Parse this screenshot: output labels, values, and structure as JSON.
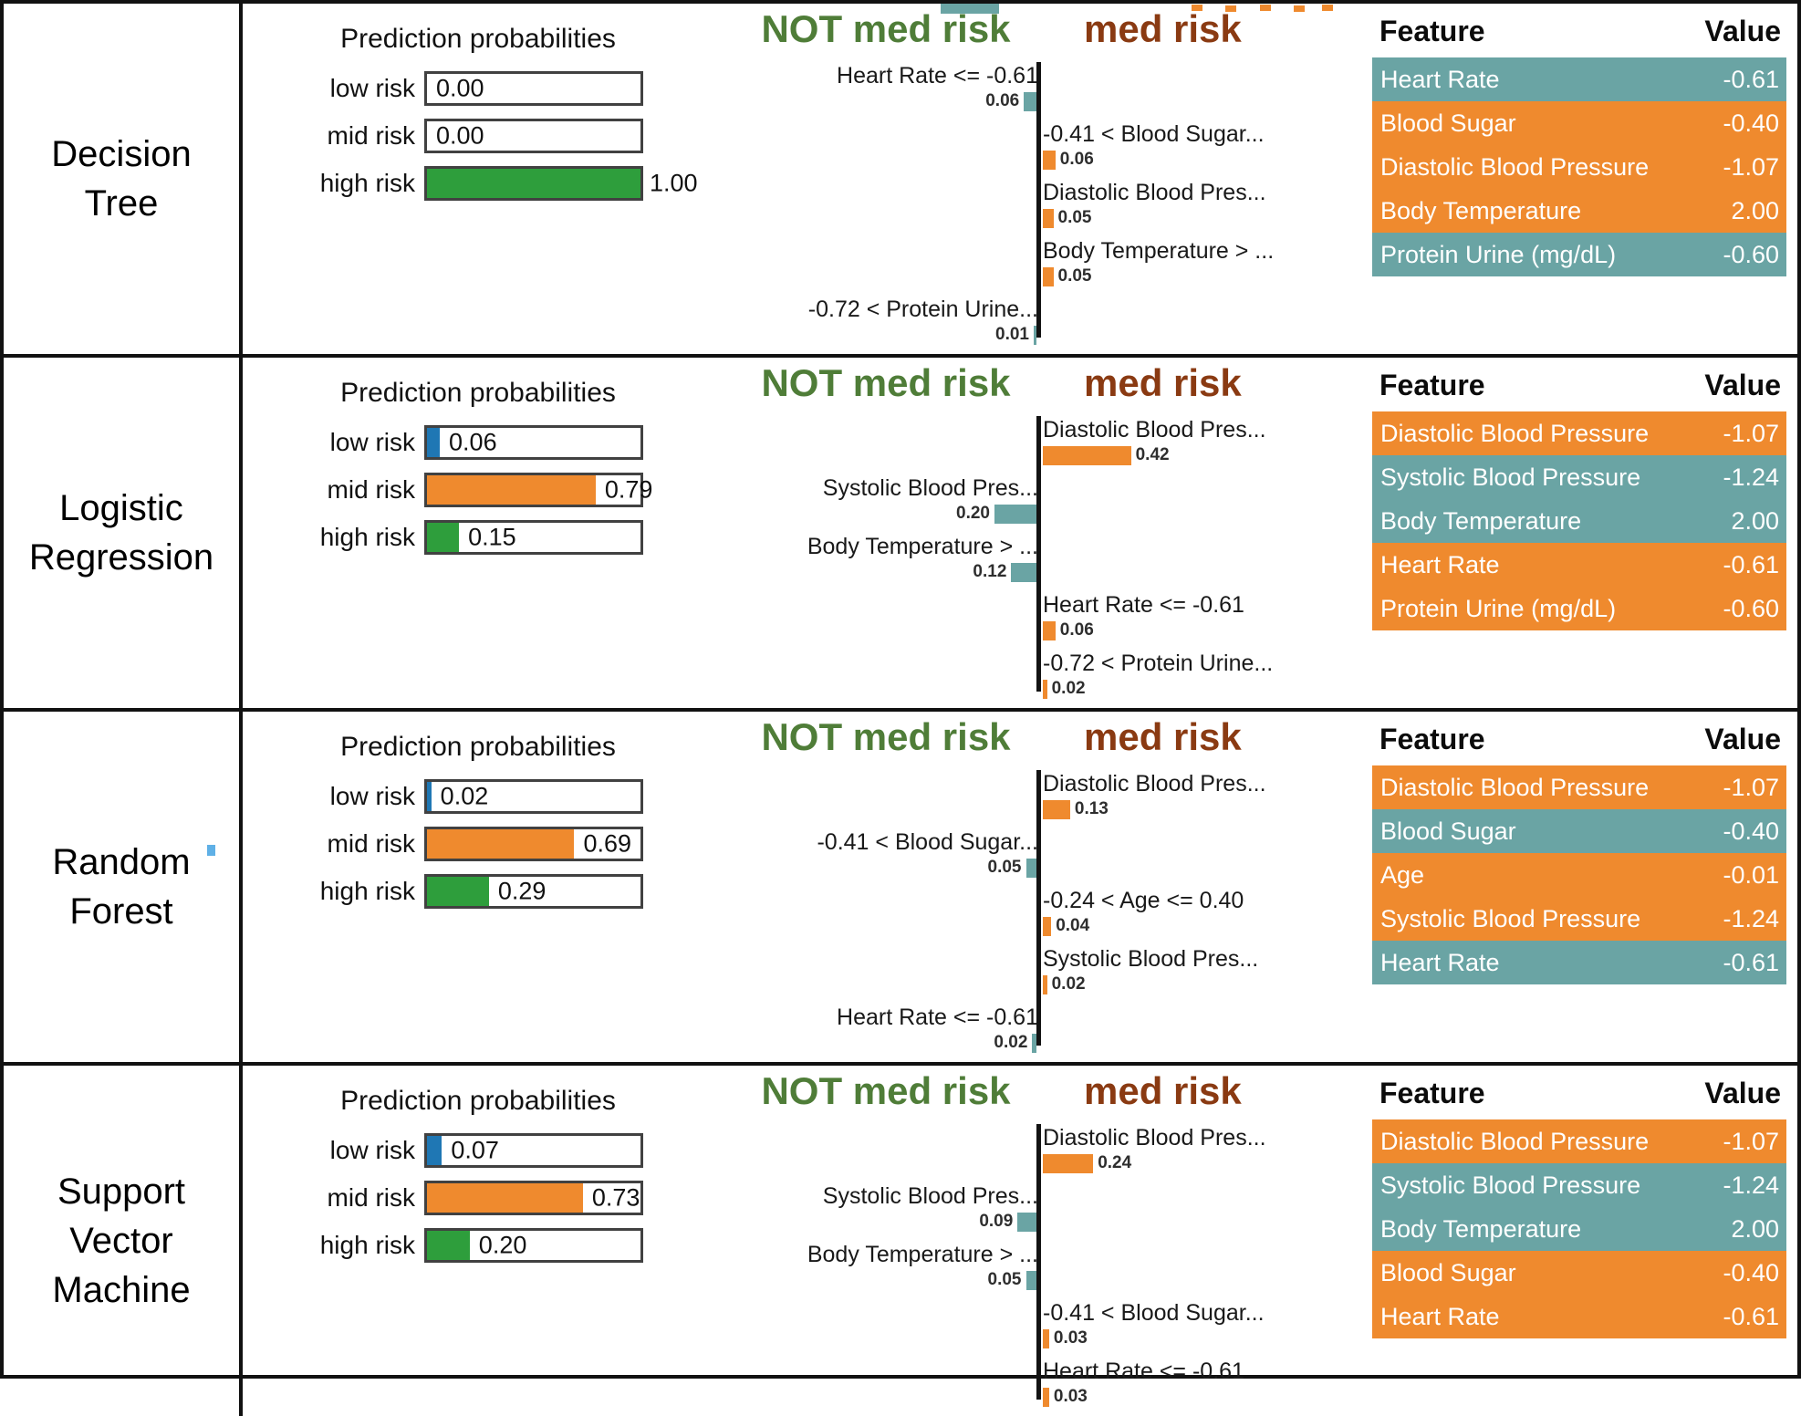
{
  "titles": {
    "probabilities": "Prediction probabilities",
    "not_med_risk": "NOT med risk",
    "med_risk": "med risk",
    "feature_col": "Feature",
    "value_col": "Value"
  },
  "colors": {
    "blue": "#1f77b4",
    "orange": "#ef8a2e",
    "green": "#2e9e3c",
    "teal": "#6aa4a4",
    "not_med_risk_title": "#4f7d38",
    "med_risk_title": "#8a3a12"
  },
  "chart_data": {
    "type": "bar",
    "layout": "lime-explanation-table",
    "prob_axis_range": [
      0,
      1
    ],
    "rows": [
      {
        "model": "Decision Tree",
        "name_lines": [
          "Decision",
          "Tree"
        ],
        "prediction_probabilities": [
          {
            "label": "low risk",
            "value": 0.0,
            "text": "0.00",
            "color": "blue"
          },
          {
            "label": "mid risk",
            "value": 0.0,
            "text": "0.00",
            "color": "orange"
          },
          {
            "label": "high risk",
            "value": 1.0,
            "text": "1.00",
            "color": "green"
          }
        ],
        "contributions": [
          {
            "label": "Heart Rate <= -0.61",
            "value": 0.06,
            "text": "0.06",
            "side": "not_med_risk"
          },
          {
            "label": "-0.41 < Blood Sugar...",
            "value": 0.06,
            "text": "0.06",
            "side": "med_risk"
          },
          {
            "label": "Diastolic Blood Pres...",
            "value": 0.05,
            "text": "0.05",
            "side": "med_risk"
          },
          {
            "label": "Body Temperature > ...",
            "value": 0.05,
            "text": "0.05",
            "side": "med_risk"
          },
          {
            "label": "-0.72 < Protein Urine...",
            "value": 0.01,
            "text": "0.01",
            "side": "not_med_risk"
          }
        ],
        "feature_values": [
          {
            "feature": "Heart Rate",
            "value": "-0.61",
            "side": "not_med_risk"
          },
          {
            "feature": "Blood Sugar",
            "value": "-0.40",
            "side": "med_risk"
          },
          {
            "feature": "Diastolic Blood Pressure",
            "value": "-1.07",
            "side": "med_risk"
          },
          {
            "feature": "Body Temperature",
            "value": "2.00",
            "side": "med_risk"
          },
          {
            "feature": "Protein Urine (mg/dL)",
            "value": "-0.60",
            "side": "not_med_risk"
          }
        ]
      },
      {
        "model": "Logistic Regression",
        "name_lines": [
          "Logistic",
          "Regression"
        ],
        "prediction_probabilities": [
          {
            "label": "low risk",
            "value": 0.06,
            "text": "0.06",
            "color": "blue"
          },
          {
            "label": "mid risk",
            "value": 0.79,
            "text": "0.79",
            "color": "orange"
          },
          {
            "label": "high risk",
            "value": 0.15,
            "text": "0.15",
            "color": "green"
          }
        ],
        "contributions": [
          {
            "label": "Diastolic Blood Pres...",
            "value": 0.42,
            "text": "0.42",
            "side": "med_risk"
          },
          {
            "label": "Systolic Blood Pres...",
            "value": 0.2,
            "text": "0.20",
            "side": "not_med_risk"
          },
          {
            "label": "Body Temperature > ...",
            "value": 0.12,
            "text": "0.12",
            "side": "not_med_risk"
          },
          {
            "label": "Heart Rate <= -0.61",
            "value": 0.06,
            "text": "0.06",
            "side": "med_risk"
          },
          {
            "label": "-0.72 < Protein Urine...",
            "value": 0.02,
            "text": "0.02",
            "side": "med_risk"
          }
        ],
        "feature_values": [
          {
            "feature": "Diastolic Blood Pressure",
            "value": "-1.07",
            "side": "med_risk"
          },
          {
            "feature": "Systolic Blood Pressure",
            "value": "-1.24",
            "side": "not_med_risk"
          },
          {
            "feature": "Body Temperature",
            "value": "2.00",
            "side": "not_med_risk"
          },
          {
            "feature": "Heart Rate",
            "value": "-0.61",
            "side": "med_risk"
          },
          {
            "feature": "Protein Urine (mg/dL)",
            "value": "-0.60",
            "side": "med_risk"
          }
        ]
      },
      {
        "model": "Random Forest",
        "name_lines": [
          "Random",
          "Forest"
        ],
        "prediction_probabilities": [
          {
            "label": "low risk",
            "value": 0.02,
            "text": "0.02",
            "color": "blue"
          },
          {
            "label": "mid risk",
            "value": 0.69,
            "text": "0.69",
            "color": "orange"
          },
          {
            "label": "high risk",
            "value": 0.29,
            "text": "0.29",
            "color": "green"
          }
        ],
        "contributions": [
          {
            "label": "Diastolic Blood Pres...",
            "value": 0.13,
            "text": "0.13",
            "side": "med_risk"
          },
          {
            "label": "-0.41 < Blood Sugar...",
            "value": 0.05,
            "text": "0.05",
            "side": "not_med_risk"
          },
          {
            "label": "-0.24 < Age <= 0.40",
            "value": 0.04,
            "text": "0.04",
            "side": "med_risk"
          },
          {
            "label": "Systolic Blood Pres...",
            "value": 0.02,
            "text": "0.02",
            "side": "med_risk"
          },
          {
            "label": "Heart Rate <= -0.61",
            "value": 0.02,
            "text": "0.02",
            "side": "not_med_risk"
          }
        ],
        "feature_values": [
          {
            "feature": "Diastolic Blood Pressure",
            "value": "-1.07",
            "side": "med_risk"
          },
          {
            "feature": "Blood Sugar",
            "value": "-0.40",
            "side": "not_med_risk"
          },
          {
            "feature": "Age",
            "value": "-0.01",
            "side": "med_risk"
          },
          {
            "feature": "Systolic Blood Pressure",
            "value": "-1.24",
            "side": "med_risk"
          },
          {
            "feature": "Heart Rate",
            "value": "-0.61",
            "side": "not_med_risk"
          }
        ]
      },
      {
        "model": "Support Vector Machine",
        "name_lines": [
          "Support",
          "Vector",
          "Machine"
        ],
        "prediction_probabilities": [
          {
            "label": "low risk",
            "value": 0.07,
            "text": "0.07",
            "color": "blue"
          },
          {
            "label": "mid risk",
            "value": 0.73,
            "text": "0.73",
            "color": "orange"
          },
          {
            "label": "high risk",
            "value": 0.2,
            "text": "0.20",
            "color": "green"
          }
        ],
        "contributions": [
          {
            "label": "Diastolic Blood Pres...",
            "value": 0.24,
            "text": "0.24",
            "side": "med_risk"
          },
          {
            "label": "Systolic Blood Pres...",
            "value": 0.09,
            "text": "0.09",
            "side": "not_med_risk"
          },
          {
            "label": "Body Temperature > ...",
            "value": 0.05,
            "text": "0.05",
            "side": "not_med_risk"
          },
          {
            "label": "-0.41 < Blood Sugar...",
            "value": 0.03,
            "text": "0.03",
            "side": "med_risk"
          },
          {
            "label": "Heart Rate <= -0.61",
            "value": 0.03,
            "text": "0.03",
            "side": "med_risk"
          }
        ],
        "feature_values": [
          {
            "feature": "Diastolic Blood Pressure",
            "value": "-1.07",
            "side": "med_risk"
          },
          {
            "feature": "Systolic Blood Pressure",
            "value": "-1.24",
            "side": "not_med_risk"
          },
          {
            "feature": "Body Temperature",
            "value": "2.00",
            "side": "not_med_risk"
          },
          {
            "feature": "Blood Sugar",
            "value": "-0.40",
            "side": "med_risk"
          },
          {
            "feature": "Heart Rate",
            "value": "-0.61",
            "side": "med_risk"
          }
        ]
      }
    ]
  }
}
